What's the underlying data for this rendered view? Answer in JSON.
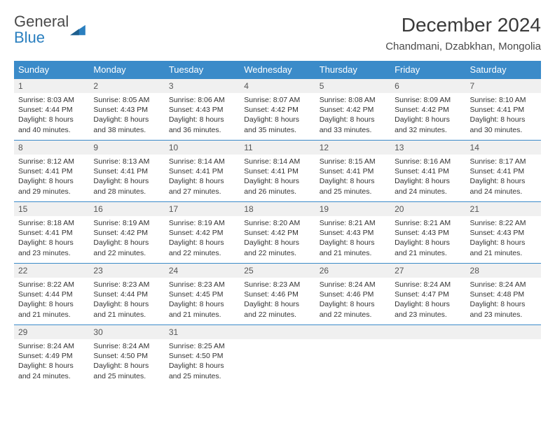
{
  "logo": {
    "word1": "General",
    "word2": "Blue"
  },
  "title": "December 2024",
  "location": "Chandmani, Dzabkhan, Mongolia",
  "colors": {
    "header_bg": "#3b8bc9",
    "header_fg": "#ffffff",
    "daynum_bg": "#f0f0f0",
    "row_border": "#3b8bc9",
    "text": "#333333",
    "logo_gray": "#4a4a4a",
    "logo_blue": "#2a7fbf"
  },
  "weekdays": [
    "Sunday",
    "Monday",
    "Tuesday",
    "Wednesday",
    "Thursday",
    "Friday",
    "Saturday"
  ],
  "weeks": [
    [
      {
        "n": "1",
        "sr": "8:03 AM",
        "ss": "4:44 PM",
        "dl": "8 hours and 40 minutes."
      },
      {
        "n": "2",
        "sr": "8:05 AM",
        "ss": "4:43 PM",
        "dl": "8 hours and 38 minutes."
      },
      {
        "n": "3",
        "sr": "8:06 AM",
        "ss": "4:43 PM",
        "dl": "8 hours and 36 minutes."
      },
      {
        "n": "4",
        "sr": "8:07 AM",
        "ss": "4:42 PM",
        "dl": "8 hours and 35 minutes."
      },
      {
        "n": "5",
        "sr": "8:08 AM",
        "ss": "4:42 PM",
        "dl": "8 hours and 33 minutes."
      },
      {
        "n": "6",
        "sr": "8:09 AM",
        "ss": "4:42 PM",
        "dl": "8 hours and 32 minutes."
      },
      {
        "n": "7",
        "sr": "8:10 AM",
        "ss": "4:41 PM",
        "dl": "8 hours and 30 minutes."
      }
    ],
    [
      {
        "n": "8",
        "sr": "8:12 AM",
        "ss": "4:41 PM",
        "dl": "8 hours and 29 minutes."
      },
      {
        "n": "9",
        "sr": "8:13 AM",
        "ss": "4:41 PM",
        "dl": "8 hours and 28 minutes."
      },
      {
        "n": "10",
        "sr": "8:14 AM",
        "ss": "4:41 PM",
        "dl": "8 hours and 27 minutes."
      },
      {
        "n": "11",
        "sr": "8:14 AM",
        "ss": "4:41 PM",
        "dl": "8 hours and 26 minutes."
      },
      {
        "n": "12",
        "sr": "8:15 AM",
        "ss": "4:41 PM",
        "dl": "8 hours and 25 minutes."
      },
      {
        "n": "13",
        "sr": "8:16 AM",
        "ss": "4:41 PM",
        "dl": "8 hours and 24 minutes."
      },
      {
        "n": "14",
        "sr": "8:17 AM",
        "ss": "4:41 PM",
        "dl": "8 hours and 24 minutes."
      }
    ],
    [
      {
        "n": "15",
        "sr": "8:18 AM",
        "ss": "4:41 PM",
        "dl": "8 hours and 23 minutes."
      },
      {
        "n": "16",
        "sr": "8:19 AM",
        "ss": "4:42 PM",
        "dl": "8 hours and 22 minutes."
      },
      {
        "n": "17",
        "sr": "8:19 AM",
        "ss": "4:42 PM",
        "dl": "8 hours and 22 minutes."
      },
      {
        "n": "18",
        "sr": "8:20 AM",
        "ss": "4:42 PM",
        "dl": "8 hours and 22 minutes."
      },
      {
        "n": "19",
        "sr": "8:21 AM",
        "ss": "4:43 PM",
        "dl": "8 hours and 21 minutes."
      },
      {
        "n": "20",
        "sr": "8:21 AM",
        "ss": "4:43 PM",
        "dl": "8 hours and 21 minutes."
      },
      {
        "n": "21",
        "sr": "8:22 AM",
        "ss": "4:43 PM",
        "dl": "8 hours and 21 minutes."
      }
    ],
    [
      {
        "n": "22",
        "sr": "8:22 AM",
        "ss": "4:44 PM",
        "dl": "8 hours and 21 minutes."
      },
      {
        "n": "23",
        "sr": "8:23 AM",
        "ss": "4:44 PM",
        "dl": "8 hours and 21 minutes."
      },
      {
        "n": "24",
        "sr": "8:23 AM",
        "ss": "4:45 PM",
        "dl": "8 hours and 21 minutes."
      },
      {
        "n": "25",
        "sr": "8:23 AM",
        "ss": "4:46 PM",
        "dl": "8 hours and 22 minutes."
      },
      {
        "n": "26",
        "sr": "8:24 AM",
        "ss": "4:46 PM",
        "dl": "8 hours and 22 minutes."
      },
      {
        "n": "27",
        "sr": "8:24 AM",
        "ss": "4:47 PM",
        "dl": "8 hours and 23 minutes."
      },
      {
        "n": "28",
        "sr": "8:24 AM",
        "ss": "4:48 PM",
        "dl": "8 hours and 23 minutes."
      }
    ],
    [
      {
        "n": "29",
        "sr": "8:24 AM",
        "ss": "4:49 PM",
        "dl": "8 hours and 24 minutes."
      },
      {
        "n": "30",
        "sr": "8:24 AM",
        "ss": "4:50 PM",
        "dl": "8 hours and 25 minutes."
      },
      {
        "n": "31",
        "sr": "8:25 AM",
        "ss": "4:50 PM",
        "dl": "8 hours and 25 minutes."
      },
      null,
      null,
      null,
      null
    ]
  ],
  "labels": {
    "sunrise": "Sunrise:",
    "sunset": "Sunset:",
    "daylight": "Daylight:"
  }
}
